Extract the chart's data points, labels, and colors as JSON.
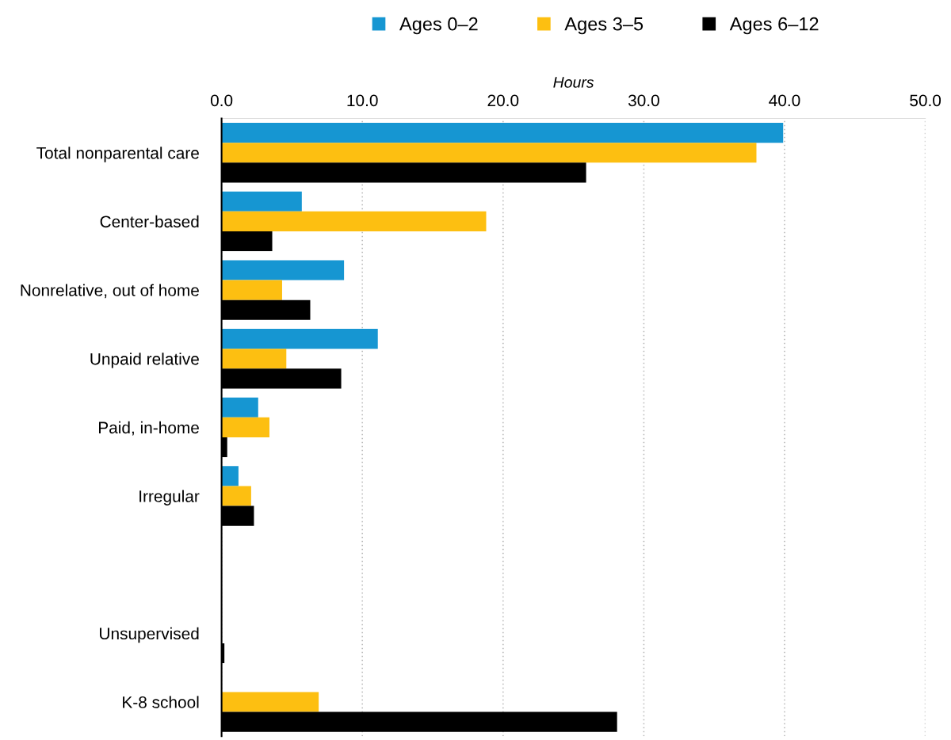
{
  "chart_data": {
    "type": "bar",
    "orientation": "horizontal",
    "xlabel": "Hours",
    "categories": [
      "Total nonparental care",
      "Center-based",
      "Nonrelative, out of home",
      "Unpaid relative",
      "Paid, in-home",
      "Irregular",
      null,
      "Unsupervised",
      "K-8 school"
    ],
    "series": [
      {
        "name": "Ages 0–2",
        "color": "#1696d2",
        "values": [
          39.9,
          5.7,
          8.7,
          11.1,
          2.6,
          1.2,
          null,
          null,
          null
        ]
      },
      {
        "name": "Ages 3–5",
        "color": "#fdbf11",
        "values": [
          38.0,
          18.8,
          4.3,
          4.6,
          3.4,
          2.1,
          null,
          null,
          6.9
        ]
      },
      {
        "name": "Ages 6–12",
        "color": "#000000",
        "values": [
          25.9,
          3.6,
          6.3,
          8.5,
          0.4,
          2.3,
          null,
          0.2,
          28.1
        ]
      }
    ],
    "xlim": [
      0,
      50
    ],
    "xticks": [
      {
        "value": 0,
        "label": "0.0"
      },
      {
        "value": 10,
        "label": "10.0"
      },
      {
        "value": 20,
        "label": "20.0"
      },
      {
        "value": 30,
        "label": "30.0"
      },
      {
        "value": 40,
        "label": "40.0"
      },
      {
        "value": 50,
        "label": "50.0"
      }
    ],
    "grid": "x",
    "legend": "top"
  }
}
